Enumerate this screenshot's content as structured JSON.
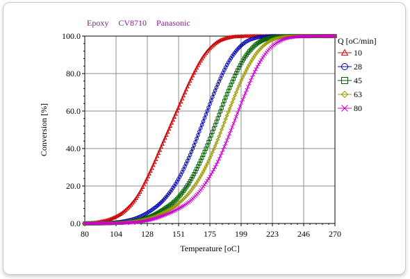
{
  "header": {
    "material": "Epoxy",
    "product": "CV8710",
    "manufacturer": "Panasonic"
  },
  "chart_data": {
    "type": "line",
    "xlabel": "Temperature [oC]",
    "ylabel": "Conversion [%]",
    "xlim": [
      80,
      270
    ],
    "ylim": [
      0,
      100
    ],
    "x_ticks": [
      "80",
      "104",
      "128",
      "151",
      "175",
      "199",
      "223",
      "246",
      "270"
    ],
    "y_ticks": [
      "0.0",
      "20.0",
      "40.0",
      "60.0",
      "80.0",
      "100.0"
    ],
    "grid": true,
    "legend_title": "Q [oC/min]",
    "legend_position": "right",
    "x": [
      80,
      90,
      100,
      110,
      120,
      130,
      140,
      150,
      160,
      170,
      180,
      190,
      200,
      210,
      220,
      230,
      240,
      250,
      260,
      270
    ],
    "series": [
      {
        "name": "10",
        "color": "#cc0000",
        "marker": "triangle",
        "values": [
          0.2,
          0.7,
          2.5,
          6.5,
          14.5,
          28,
          44,
          60,
          76,
          89,
          96.5,
          99.3,
          99.9,
          100,
          100,
          100,
          100,
          100,
          100,
          100
        ]
      },
      {
        "name": "28",
        "color": "#0000b0",
        "marker": "circle",
        "values": [
          0.0,
          0.1,
          0.4,
          1.2,
          3.1,
          6.8,
          12.7,
          22.3,
          36.6,
          54.5,
          72.6,
          87.1,
          95.7,
          99.1,
          99.9,
          100,
          100,
          100,
          100,
          100
        ]
      },
      {
        "name": "45",
        "color": "#006000",
        "marker": "square",
        "values": [
          0.0,
          0.05,
          0.2,
          0.6,
          1.6,
          3.7,
          7.6,
          13.1,
          22.6,
          36.6,
          54.3,
          72.4,
          86.9,
          95.5,
          99.0,
          99.8,
          100,
          100,
          100,
          100
        ]
      },
      {
        "name": "63",
        "color": "#999900",
        "marker": "diamond",
        "values": [
          0.0,
          0.03,
          0.1,
          0.4,
          1.2,
          2.8,
          5.8,
          10.0,
          16.9,
          27.7,
          43.0,
          61.2,
          78.0,
          90.4,
          97.1,
          99.4,
          99.9,
          100,
          100,
          100
        ]
      },
      {
        "name": "80",
        "color": "#cc00cc",
        "marker": "x",
        "values": [
          0.0,
          0.02,
          0.1,
          0.3,
          0.8,
          2.0,
          4.3,
          7.5,
          12.0,
          19.7,
          31.5,
          47.9,
          66.1,
          82.3,
          93.0,
          98.0,
          99.6,
          99.9,
          100,
          100
        ]
      }
    ]
  }
}
